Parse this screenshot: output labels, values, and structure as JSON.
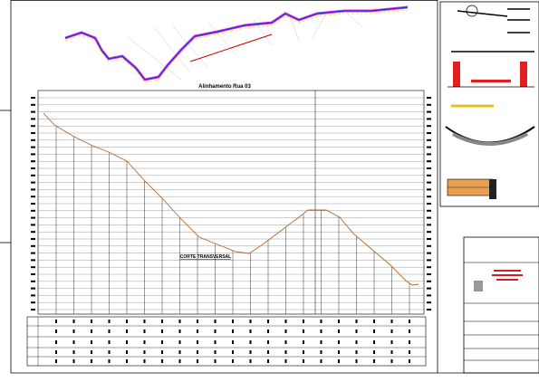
{
  "plan": {
    "title": "Alinhamento Rua 03"
  },
  "profile": {
    "label": "CORTE TRANSVERSAL"
  }
}
